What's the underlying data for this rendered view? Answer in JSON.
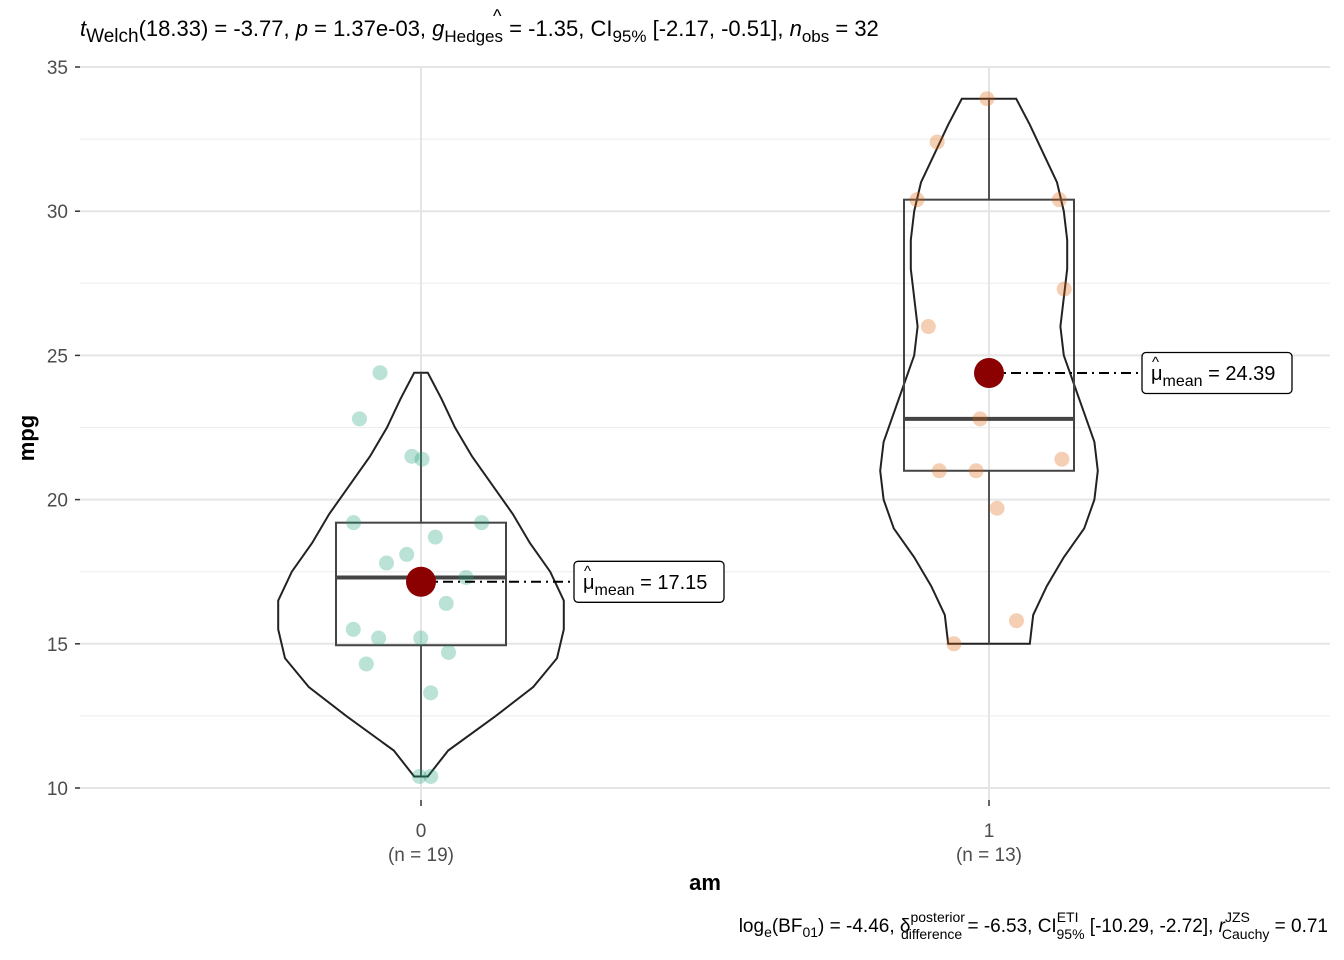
{
  "chart_data": {
    "type": "violin-box-scatter",
    "title": "",
    "subtitle": {
      "t_sym": "t",
      "t_sub": "Welch",
      "df": "(18.33)",
      "stat": " = -3.77, ",
      "p_sym": "p",
      "p_val": " = 1.37e-03, ",
      "g_sym": "g",
      "g_sub": "Hedges",
      "g_val": " = -1.35, CI",
      "ci_sub": "95%",
      "ci_val": " [-2.17, -0.51], ",
      "n_sym": "n",
      "n_sub": "obs",
      "n_val": " = 32"
    },
    "caption": {
      "log_a": "log",
      "log_sub": "e",
      "bf": "(BF",
      "bf_sub": "01",
      "bf_val": ") = -4.46, ",
      "delta": "δ",
      "delta_sup": "posterior",
      "delta_sub": "difference",
      "delta_val": " = -6.53, CI",
      "ci_sup": "ETI",
      "ci_sub": "95%",
      "ci_val": " [-10.29, -2.72], ",
      "r_sym": "r",
      "r_sup": "JZS",
      "r_sub": "Cauchy",
      "r_val": " = 0.71"
    },
    "xlabel": "am",
    "ylabel": "mpg",
    "ylim": [
      10,
      35
    ],
    "yticks": [
      10,
      15,
      20,
      25,
      30,
      35
    ],
    "grid": true,
    "groups": [
      {
        "category": "0",
        "n_label": "(n = 19)",
        "color": "#1b9e77",
        "points": [
          10.4,
          10.4,
          22.8,
          24.4,
          21.5,
          21.4,
          19.2,
          19.2,
          18.7,
          18.1,
          17.8,
          17.3,
          16.4,
          15.5,
          15.2,
          15.2,
          14.7,
          14.3,
          13.3
        ],
        "box": {
          "min": 10.4,
          "q1": 14.95,
          "median": 17.3,
          "q3": 19.2,
          "max": 24.4
        },
        "mean": 17.15,
        "mean_label": "= 17.15",
        "mu_sym": "μ",
        "mu_sub": "mean",
        "violin": [
          [
            10.4,
            0.02
          ],
          [
            11.3,
            0.08
          ],
          [
            12.5,
            0.22
          ],
          [
            13.5,
            0.33
          ],
          [
            14.5,
            0.4
          ],
          [
            15.5,
            0.42
          ],
          [
            16.5,
            0.42
          ],
          [
            17.5,
            0.38
          ],
          [
            18.5,
            0.32
          ],
          [
            19.5,
            0.27
          ],
          [
            20.5,
            0.21
          ],
          [
            21.5,
            0.15
          ],
          [
            22.5,
            0.1
          ],
          [
            23.5,
            0.06
          ],
          [
            24.4,
            0.02
          ]
        ]
      },
      {
        "category": "1",
        "n_label": "(n = 13)",
        "color": "#d95f02",
        "points": [
          33.9,
          32.4,
          30.4,
          30.4,
          27.3,
          26.0,
          22.8,
          21.4,
          21.0,
          21.0,
          19.7,
          15.8,
          15.0
        ],
        "box": {
          "min": 15.0,
          "q1": 21.0,
          "median": 22.8,
          "q3": 30.4,
          "max": 33.9
        },
        "mean": 24.39,
        "mean_label": "= 24.39",
        "mu_sym": "μ",
        "mu_sub": "mean",
        "violin": [
          [
            15.0,
            0.12
          ],
          [
            16.0,
            0.13
          ],
          [
            17.0,
            0.17
          ],
          [
            18.0,
            0.22
          ],
          [
            19.0,
            0.28
          ],
          [
            20.0,
            0.31
          ],
          [
            21.0,
            0.32
          ],
          [
            22.0,
            0.31
          ],
          [
            23.0,
            0.28
          ],
          [
            24.0,
            0.25
          ],
          [
            25.0,
            0.22
          ],
          [
            26.0,
            0.21
          ],
          [
            27.0,
            0.22
          ],
          [
            28.0,
            0.23
          ],
          [
            29.0,
            0.23
          ],
          [
            30.0,
            0.22
          ],
          [
            31.0,
            0.2
          ],
          [
            32.0,
            0.16
          ],
          [
            33.0,
            0.12
          ],
          [
            33.9,
            0.08
          ]
        ]
      }
    ],
    "point_alpha": 0.3,
    "mean_color": "#8b0000"
  }
}
